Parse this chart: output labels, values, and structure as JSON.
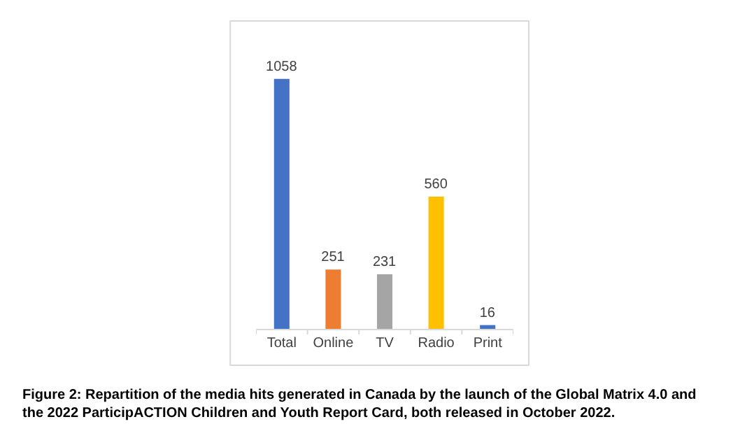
{
  "chart_data": {
    "type": "bar",
    "categories": [
      "Total",
      "Online",
      "TV",
      "Radio",
      "Print"
    ],
    "values": [
      1058,
      251,
      231,
      560,
      16
    ],
    "colors": [
      "#4472c4",
      "#ed7d31",
      "#a5a5a5",
      "#ffc000",
      "#4472c4"
    ],
    "data_labels": true,
    "legend": false,
    "annotations": [
      "Figure 2: Repartition of the media hits generated in Canada by the launch of the Global Matrix 4.0 and\nthe 2022 ParticipACTION Children and Youth Report Card, both released in October 2022."
    ]
  }
}
